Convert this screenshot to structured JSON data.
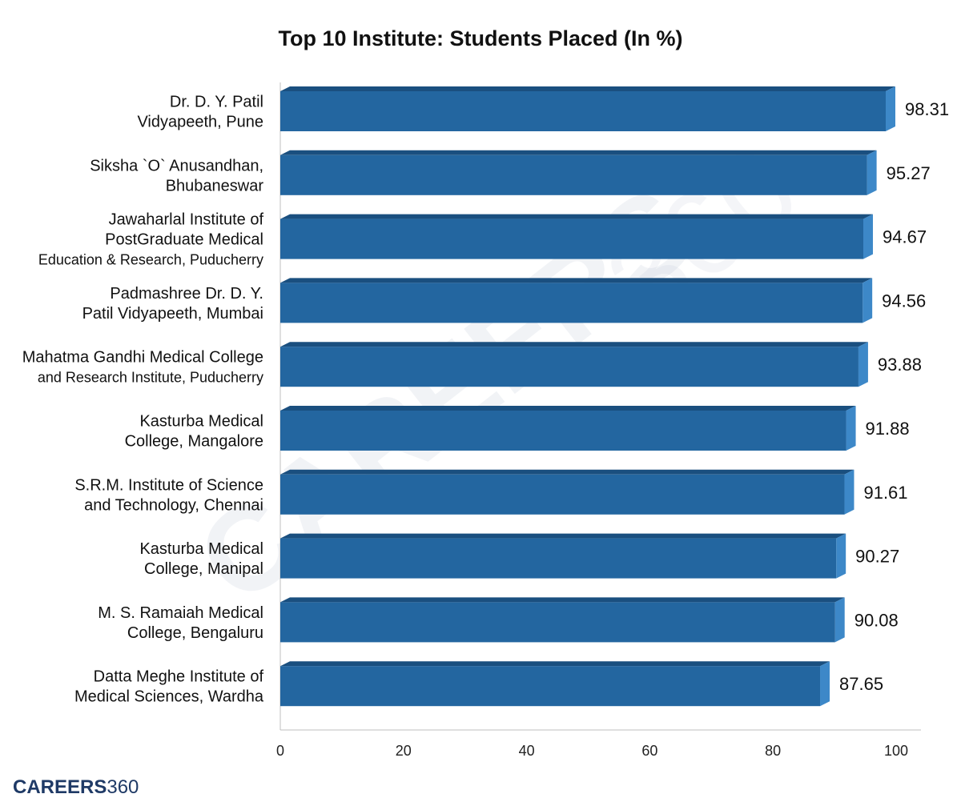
{
  "chart_data": {
    "type": "bar",
    "orientation": "horizontal",
    "title": "Top 10 Institute: Students Placed (In %)",
    "categories": [
      [
        "Dr. D. Y. Patil",
        "Vidyapeeth, Pune"
      ],
      [
        "Siksha `O` Anusandhan,",
        "Bhubaneswar"
      ],
      [
        "Jawaharlal Institute of",
        "PostGraduate Medical",
        "Education & Research, Puducherry"
      ],
      [
        "Padmashree Dr. D. Y.",
        "Patil Vidyapeeth, Mumbai"
      ],
      [
        "Mahatma Gandhi Medical College",
        "and Research Institute, Puducherry"
      ],
      [
        "Kasturba Medical",
        "College, Mangalore"
      ],
      [
        "S.R.M. Institute of Science",
        "and Technology, Chennai"
      ],
      [
        "Kasturba Medical",
        "College, Manipal"
      ],
      [
        "M. S. Ramaiah Medical",
        "College, Bengaluru"
      ],
      [
        "Datta Meghe Institute of",
        "Medical Sciences, Wardha"
      ]
    ],
    "values": [
      98.31,
      95.27,
      94.67,
      94.56,
      93.88,
      91.88,
      91.61,
      90.27,
      90.08,
      87.65
    ],
    "value_labels": [
      "98.31",
      "95.27",
      "94.67",
      "94.56",
      "93.88",
      "91.88",
      "91.61",
      "90.27",
      "90.08",
      "87.65"
    ],
    "xlim": [
      0,
      100
    ],
    "xticks": [
      0,
      20,
      40,
      60,
      80,
      100
    ],
    "xtick_labels": [
      "0",
      "20",
      "40",
      "60",
      "80",
      "100"
    ],
    "xlabel": "",
    "ylabel": "",
    "grid": false,
    "legend": "none",
    "style": "3d-bars",
    "colors": {
      "bar_front": "#2366a0",
      "bar_top": "#1a4f7f",
      "bar_side": "#3d88c8",
      "axis": "#bfbfbf"
    }
  },
  "branding": {
    "logo_main": "CAREERS",
    "logo_number": "360"
  }
}
